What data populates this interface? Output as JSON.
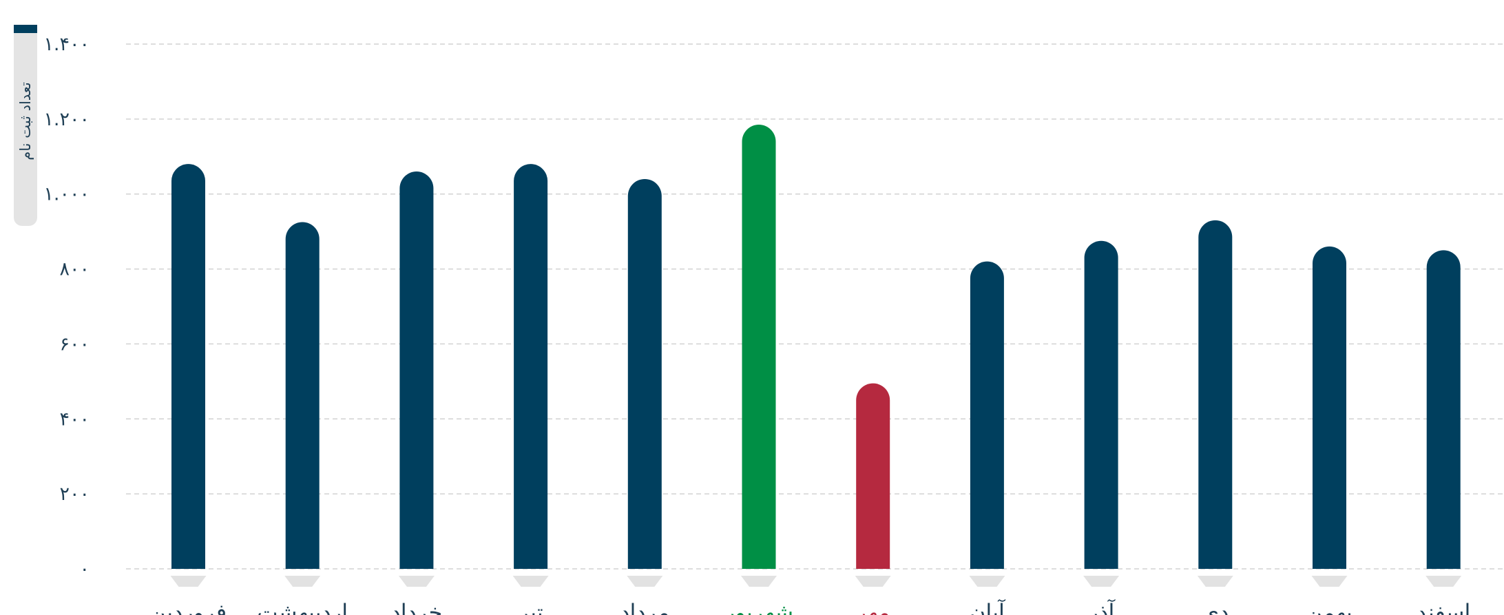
{
  "chart_data": {
    "type": "bar",
    "ylabel": "تعداد ثبت نام",
    "ylim": [
      0,
      1400
    ],
    "yticks": [
      0,
      200,
      400,
      600,
      800,
      1000,
      1200,
      1400
    ],
    "ytick_labels": [
      "۰",
      "۲۰۰",
      "۴۰۰",
      "۶۰۰",
      "۸۰۰",
      "۱.۰۰۰",
      "۱.۲۰۰",
      "۱.۴۰۰"
    ],
    "categories": [
      "فروردین",
      "اردیبهشت",
      "خرداد",
      "تیر",
      "مرداد",
      "شهریور",
      "مهر",
      "آبان",
      "آذر",
      "دی",
      "بهمن",
      "اسفند"
    ],
    "values": [
      1080,
      925,
      1060,
      1080,
      1040,
      1185,
      495,
      820,
      875,
      930,
      860,
      850
    ],
    "grid": true,
    "colors": {
      "default": "#003f5e",
      "max": "#008f45",
      "min": "#b5293f",
      "grid": "#d2d2d2",
      "tick_text": "#1f3f55",
      "marker": "#e2e2e2"
    },
    "highlight": {
      "max_index": 5,
      "min_index": 6
    }
  }
}
